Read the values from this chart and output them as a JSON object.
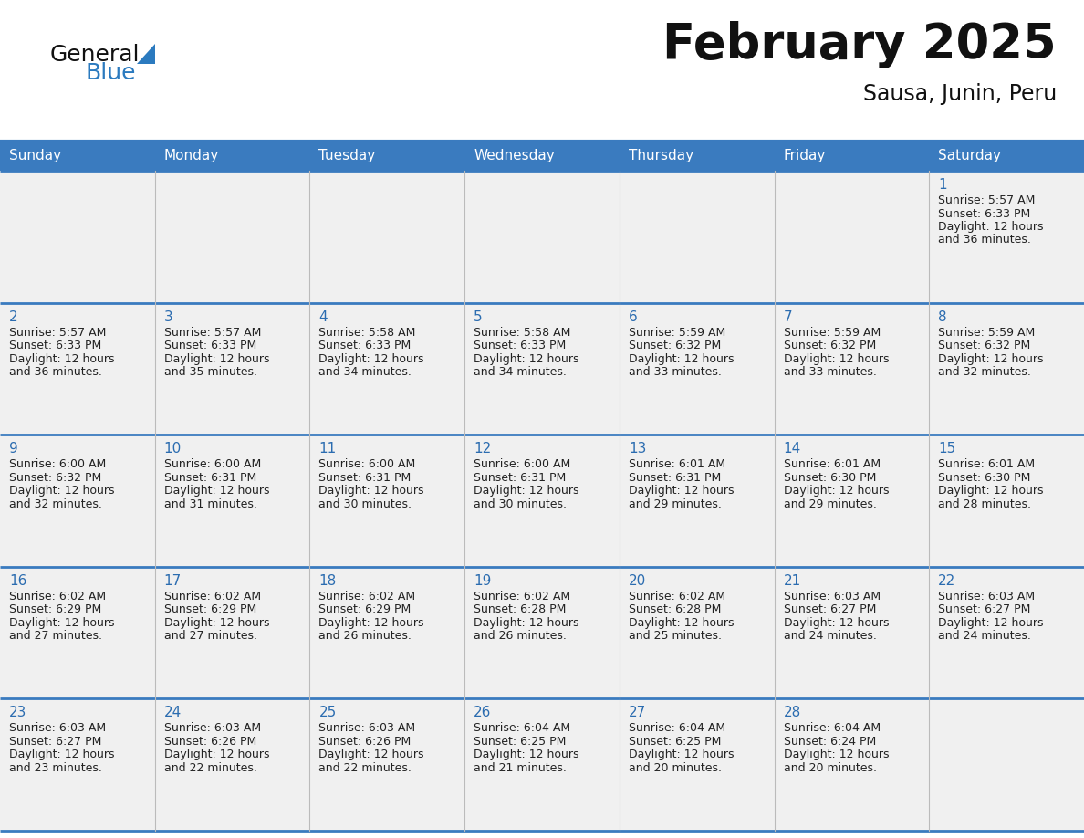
{
  "title": "February 2025",
  "subtitle": "Sausa, Junin, Peru",
  "header_bg": "#3a7bbf",
  "header_text_color": "#FFFFFF",
  "title_color": "#111111",
  "subtitle_color": "#111111",
  "number_color": "#2B6CB0",
  "info_color": "#222222",
  "line_color": "#3a7bbf",
  "sep_line_color": "#3a7bbf",
  "cell_bg": "#F0F0F0",
  "day_headers": [
    "Sunday",
    "Monday",
    "Tuesday",
    "Wednesday",
    "Thursday",
    "Friday",
    "Saturday"
  ],
  "calendar_data": [
    [
      null,
      null,
      null,
      null,
      null,
      null,
      {
        "day": "1",
        "sunrise": "5:57 AM",
        "sunset": "6:33 PM",
        "daylight": "12 hours",
        "daylight2": "and 36 minutes."
      }
    ],
    [
      {
        "day": "2",
        "sunrise": "5:57 AM",
        "sunset": "6:33 PM",
        "daylight": "12 hours",
        "daylight2": "and 36 minutes."
      },
      {
        "day": "3",
        "sunrise": "5:57 AM",
        "sunset": "6:33 PM",
        "daylight": "12 hours",
        "daylight2": "and 35 minutes."
      },
      {
        "day": "4",
        "sunrise": "5:58 AM",
        "sunset": "6:33 PM",
        "daylight": "12 hours",
        "daylight2": "and 34 minutes."
      },
      {
        "day": "5",
        "sunrise": "5:58 AM",
        "sunset": "6:33 PM",
        "daylight": "12 hours",
        "daylight2": "and 34 minutes."
      },
      {
        "day": "6",
        "sunrise": "5:59 AM",
        "sunset": "6:32 PM",
        "daylight": "12 hours",
        "daylight2": "and 33 minutes."
      },
      {
        "day": "7",
        "sunrise": "5:59 AM",
        "sunset": "6:32 PM",
        "daylight": "12 hours",
        "daylight2": "and 33 minutes."
      },
      {
        "day": "8",
        "sunrise": "5:59 AM",
        "sunset": "6:32 PM",
        "daylight": "12 hours",
        "daylight2": "and 32 minutes."
      }
    ],
    [
      {
        "day": "9",
        "sunrise": "6:00 AM",
        "sunset": "6:32 PM",
        "daylight": "12 hours",
        "daylight2": "and 32 minutes."
      },
      {
        "day": "10",
        "sunrise": "6:00 AM",
        "sunset": "6:31 PM",
        "daylight": "12 hours",
        "daylight2": "and 31 minutes."
      },
      {
        "day": "11",
        "sunrise": "6:00 AM",
        "sunset": "6:31 PM",
        "daylight": "12 hours",
        "daylight2": "and 30 minutes."
      },
      {
        "day": "12",
        "sunrise": "6:00 AM",
        "sunset": "6:31 PM",
        "daylight": "12 hours",
        "daylight2": "and 30 minutes."
      },
      {
        "day": "13",
        "sunrise": "6:01 AM",
        "sunset": "6:31 PM",
        "daylight": "12 hours",
        "daylight2": "and 29 minutes."
      },
      {
        "day": "14",
        "sunrise": "6:01 AM",
        "sunset": "6:30 PM",
        "daylight": "12 hours",
        "daylight2": "and 29 minutes."
      },
      {
        "day": "15",
        "sunrise": "6:01 AM",
        "sunset": "6:30 PM",
        "daylight": "12 hours",
        "daylight2": "and 28 minutes."
      }
    ],
    [
      {
        "day": "16",
        "sunrise": "6:02 AM",
        "sunset": "6:29 PM",
        "daylight": "12 hours",
        "daylight2": "and 27 minutes."
      },
      {
        "day": "17",
        "sunrise": "6:02 AM",
        "sunset": "6:29 PM",
        "daylight": "12 hours",
        "daylight2": "and 27 minutes."
      },
      {
        "day": "18",
        "sunrise": "6:02 AM",
        "sunset": "6:29 PM",
        "daylight": "12 hours",
        "daylight2": "and 26 minutes."
      },
      {
        "day": "19",
        "sunrise": "6:02 AM",
        "sunset": "6:28 PM",
        "daylight": "12 hours",
        "daylight2": "and 26 minutes."
      },
      {
        "day": "20",
        "sunrise": "6:02 AM",
        "sunset": "6:28 PM",
        "daylight": "12 hours",
        "daylight2": "and 25 minutes."
      },
      {
        "day": "21",
        "sunrise": "6:03 AM",
        "sunset": "6:27 PM",
        "daylight": "12 hours",
        "daylight2": "and 24 minutes."
      },
      {
        "day": "22",
        "sunrise": "6:03 AM",
        "sunset": "6:27 PM",
        "daylight": "12 hours",
        "daylight2": "and 24 minutes."
      }
    ],
    [
      {
        "day": "23",
        "sunrise": "6:03 AM",
        "sunset": "6:27 PM",
        "daylight": "12 hours",
        "daylight2": "and 23 minutes."
      },
      {
        "day": "24",
        "sunrise": "6:03 AM",
        "sunset": "6:26 PM",
        "daylight": "12 hours",
        "daylight2": "and 22 minutes."
      },
      {
        "day": "25",
        "sunrise": "6:03 AM",
        "sunset": "6:26 PM",
        "daylight": "12 hours",
        "daylight2": "and 22 minutes."
      },
      {
        "day": "26",
        "sunrise": "6:04 AM",
        "sunset": "6:25 PM",
        "daylight": "12 hours",
        "daylight2": "and 21 minutes."
      },
      {
        "day": "27",
        "sunrise": "6:04 AM",
        "sunset": "6:25 PM",
        "daylight": "12 hours",
        "daylight2": "and 20 minutes."
      },
      {
        "day": "28",
        "sunrise": "6:04 AM",
        "sunset": "6:24 PM",
        "daylight": "12 hours",
        "daylight2": "and 20 minutes."
      },
      null
    ]
  ]
}
